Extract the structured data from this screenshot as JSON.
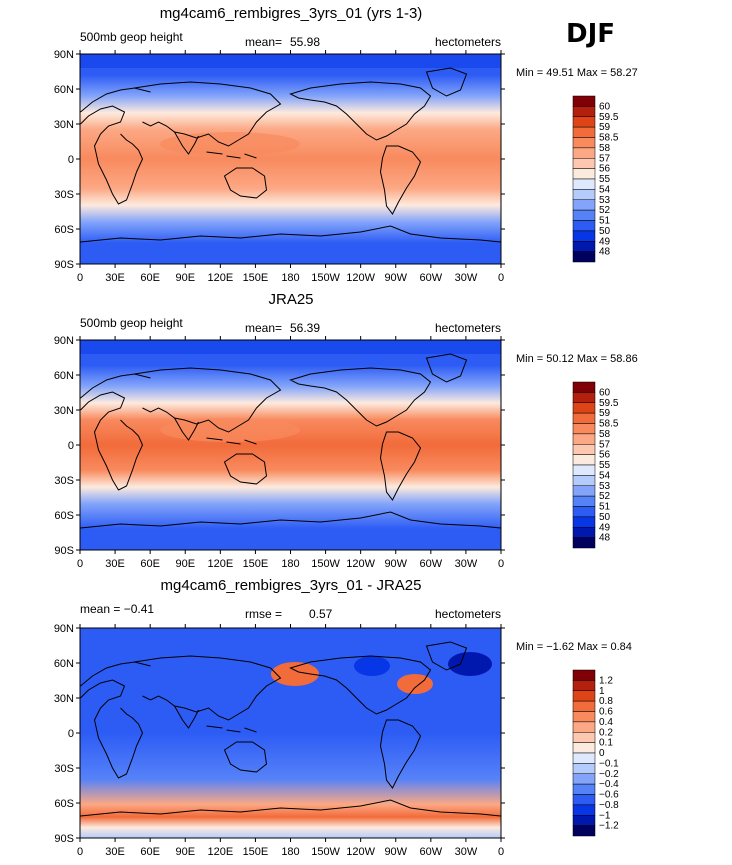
{
  "season": "DJF",
  "x_ticks": [
    "0",
    "30E",
    "60E",
    "90E",
    "120E",
    "150E",
    "180",
    "150W",
    "120W",
    "90W",
    "60W",
    "30W",
    "0"
  ],
  "y_ticks": [
    "90N",
    "60N",
    "30N",
    "0",
    "30S",
    "60S",
    "90S"
  ],
  "colors": {
    "fill_scale": [
      "#00005e",
      "#0018ad",
      "#0736e6",
      "#2d5cf5",
      "#5682f8",
      "#83a4fa",
      "#b4cbfc",
      "#dfe9fe",
      "#fdeade",
      "#fdc7b0",
      "#fca884",
      "#f88a5e",
      "#f26b3b",
      "#de4418",
      "#b3200d",
      "#800008"
    ],
    "coastline": "#000000"
  },
  "chart_data": [
    {
      "type": "heatmap",
      "title": "mg4cam6_rembigres_3yrs_01 (yrs 1-3)",
      "left_label": "500mb geop height",
      "center_label": "mean=",
      "center_value": "55.98",
      "right_label": "hectometers",
      "min_text": "Min =  49.51 Max =  58.27",
      "min": 49.51,
      "max": 58.27,
      "mean": 55.98,
      "colorbar_levels": [
        "60",
        "59.5",
        "59",
        "58.5",
        "58",
        "57",
        "56",
        "55",
        "54",
        "53",
        "52",
        "51",
        "50",
        "49",
        "48"
      ],
      "xlim": [
        0,
        360
      ],
      "ylim": [
        -90,
        90
      ]
    },
    {
      "type": "heatmap",
      "title": "JRA25",
      "left_label": "500mb geop height",
      "center_label": "mean=",
      "center_value": "56.39",
      "right_label": "hectometers",
      "min_text": "Min =  50.12 Max =  58.86",
      "min": 50.12,
      "max": 58.86,
      "mean": 56.39,
      "colorbar_levels": [
        "60",
        "59.5",
        "59",
        "58.5",
        "58",
        "57",
        "56",
        "55",
        "54",
        "53",
        "52",
        "51",
        "50",
        "49",
        "48"
      ],
      "xlim": [
        0,
        360
      ],
      "ylim": [
        -90,
        90
      ]
    },
    {
      "type": "heatmap",
      "title": "mg4cam6_rembigres_3yrs_01 - JRA25",
      "left_label": "mean =  −0.41",
      "center_label": "rmse =",
      "center_value": "0.57",
      "right_label": "hectometers",
      "min_text": "Min =  −1.62 Max =   0.84",
      "min": -1.62,
      "max": 0.84,
      "mean": -0.41,
      "rmse": 0.57,
      "colorbar_levels": [
        "1.2",
        "1",
        "0.8",
        "0.6",
        "0.4",
        "0.2",
        "0.1",
        "0",
        "−0.1",
        "−0.2",
        "−0.4",
        "−0.6",
        "−0.8",
        "−1",
        "−1.2"
      ],
      "xlim": [
        0,
        360
      ],
      "ylim": [
        -90,
        90
      ]
    }
  ]
}
